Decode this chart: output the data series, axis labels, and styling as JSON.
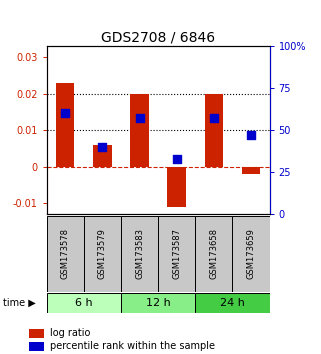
{
  "title": "GDS2708 / 6846",
  "samples": [
    "GSM173578",
    "GSM173579",
    "GSM173583",
    "GSM173587",
    "GSM173658",
    "GSM173659"
  ],
  "log_ratios": [
    0.023,
    0.006,
    0.02,
    -0.011,
    0.02,
    -0.002
  ],
  "percentile_ranks": [
    60,
    40,
    57,
    33,
    57,
    47
  ],
  "time_groups": [
    {
      "label": "6 h",
      "indices": [
        0,
        1
      ],
      "color": "#bbffbb"
    },
    {
      "label": "12 h",
      "indices": [
        2,
        3
      ],
      "color": "#88ee88"
    },
    {
      "label": "24 h",
      "indices": [
        4,
        5
      ],
      "color": "#44cc44"
    }
  ],
  "ylim_left": [
    -0.013,
    0.033
  ],
  "ylim_right": [
    0,
    100
  ],
  "yticks_left": [
    -0.01,
    0,
    0.01,
    0.02,
    0.03
  ],
  "ytick_labels_left": [
    "-0.01",
    "0",
    "0.01",
    "0.02",
    "0.03"
  ],
  "yticks_right": [
    0,
    25,
    50,
    75,
    100
  ],
  "ytick_labels_right": [
    "0",
    "25",
    "50",
    "75",
    "100%"
  ],
  "hlines_dotted": [
    0.01,
    0.02
  ],
  "hline_dashed_color": "#cc2200",
  "bar_color": "#cc2200",
  "dot_color": "#0000cc",
  "bar_width": 0.5,
  "dot_size": 30,
  "left_tick_color": "#cc2200",
  "right_tick_color": "#0000cc",
  "title_fontsize": 10,
  "tick_fontsize": 7,
  "sample_fontsize": 6,
  "time_fontsize": 8,
  "legend_fontsize": 7
}
